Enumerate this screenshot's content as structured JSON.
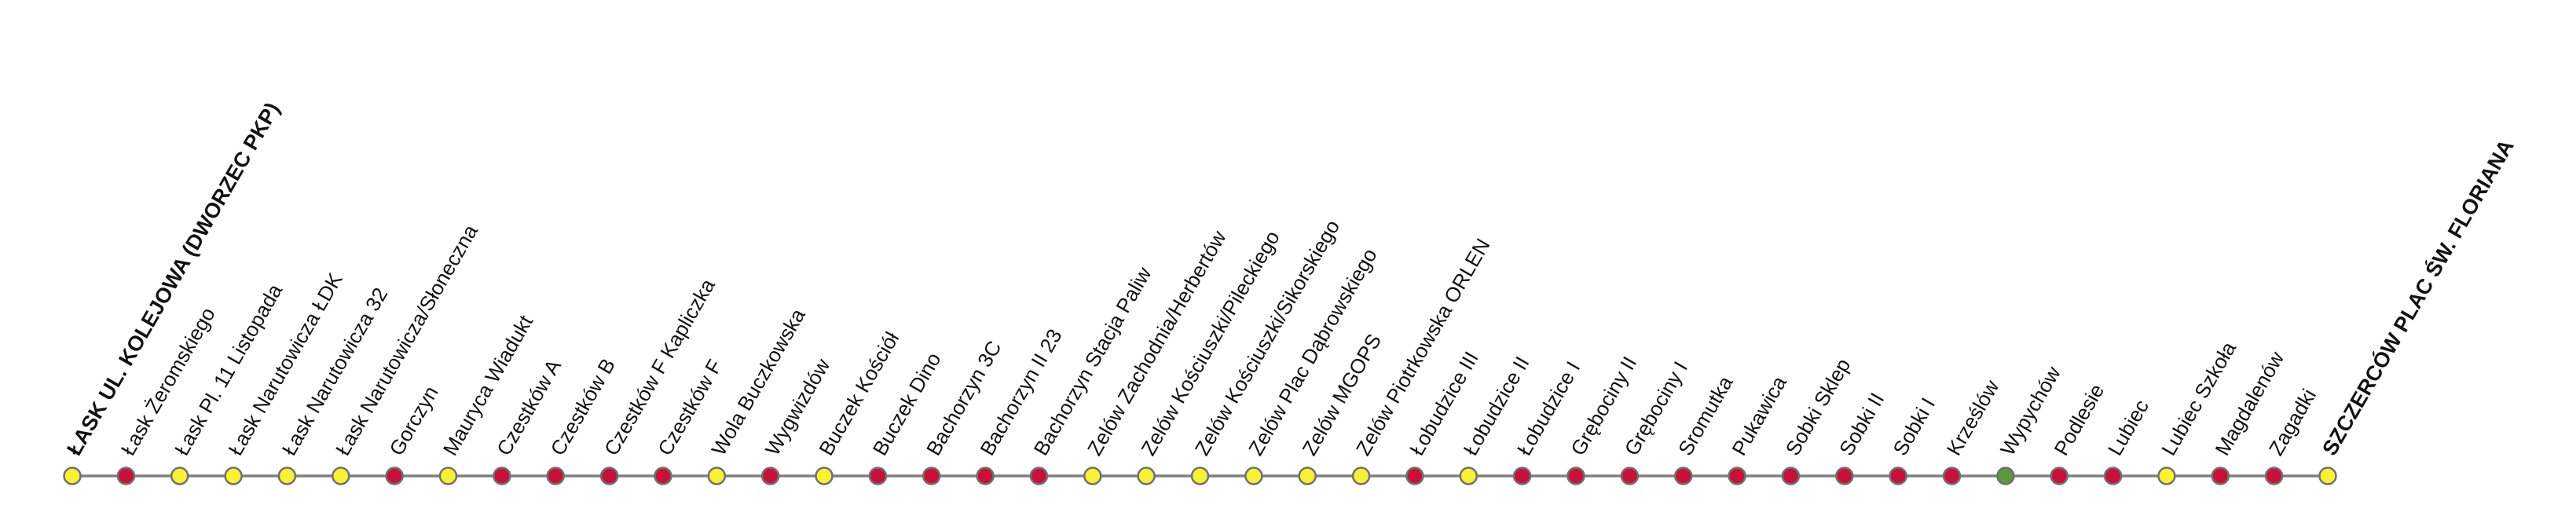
{
  "colors": {
    "line": "#808080",
    "yellow": "#f7f035",
    "red": "#c8113a",
    "green": "#5a9a3c"
  },
  "stops": [
    {
      "name": "ŁASK UL. KOLEJOWA (DWORZEC PKP)",
      "color": "yellow",
      "terminal": true
    },
    {
      "name": "Łask Żeromskiego",
      "color": "red"
    },
    {
      "name": "Łask Pl. 11 Listopada",
      "color": "yellow"
    },
    {
      "name": "Łask Narutowicza ŁDK",
      "color": "yellow"
    },
    {
      "name": "Łask Narutowicza 32",
      "color": "yellow"
    },
    {
      "name": "Łask Narutowicza/Słoneczna",
      "color": "yellow"
    },
    {
      "name": "Gorczyn",
      "color": "red"
    },
    {
      "name": "Mauryca Wiadukt",
      "color": "yellow"
    },
    {
      "name": "Czestków A",
      "color": "red"
    },
    {
      "name": "Czestków B",
      "color": "red"
    },
    {
      "name": "Czestków F Kapliczka",
      "color": "red"
    },
    {
      "name": "Czestków F",
      "color": "red"
    },
    {
      "name": "Wola Buczkowska",
      "color": "yellow"
    },
    {
      "name": "Wygwizdów",
      "color": "red"
    },
    {
      "name": "Buczek Kościół",
      "color": "yellow"
    },
    {
      "name": "Buczek Dino",
      "color": "red"
    },
    {
      "name": "Bachorzyn 3C",
      "color": "red"
    },
    {
      "name": "Bachorzyn II 23",
      "color": "red"
    },
    {
      "name": "Bachorzyn Stacja Paliw",
      "color": "red"
    },
    {
      "name": "Zelów Zachodnia/Herbertów",
      "color": "yellow"
    },
    {
      "name": "Zelów Kościuszki/Pileckiego",
      "color": "yellow"
    },
    {
      "name": "Zelów Kościuszki/Sikorskiego",
      "color": "yellow"
    },
    {
      "name": "Zelów Plac Dąbrowskiego",
      "color": "yellow"
    },
    {
      "name": "Zelów MGOPS",
      "color": "yellow"
    },
    {
      "name": "Zelów Piotrkowska ORLEN",
      "color": "yellow"
    },
    {
      "name": "Łobudzice III",
      "color": "red"
    },
    {
      "name": "Łobudzice II",
      "color": "yellow"
    },
    {
      "name": "Łobudzice I",
      "color": "red"
    },
    {
      "name": "Grębociny II",
      "color": "red"
    },
    {
      "name": "Grębociny I",
      "color": "red"
    },
    {
      "name": "Sromutka",
      "color": "red"
    },
    {
      "name": "Pukawica",
      "color": "red"
    },
    {
      "name": "Sobki Sklep",
      "color": "red"
    },
    {
      "name": "Sobki II",
      "color": "red"
    },
    {
      "name": "Sobki I",
      "color": "red"
    },
    {
      "name": "Krześlów",
      "color": "red"
    },
    {
      "name": "Wypychów",
      "color": "green"
    },
    {
      "name": "Podlesie",
      "color": "red"
    },
    {
      "name": "Lubiec",
      "color": "red"
    },
    {
      "name": "Lubiec Szkoła",
      "color": "yellow"
    },
    {
      "name": "Magdalenów",
      "color": "red"
    },
    {
      "name": "Zagadki",
      "color": "red"
    },
    {
      "name": "SZCZERCÓW PLAC ŚW. FLORIANA",
      "color": "yellow",
      "terminal": true
    }
  ]
}
